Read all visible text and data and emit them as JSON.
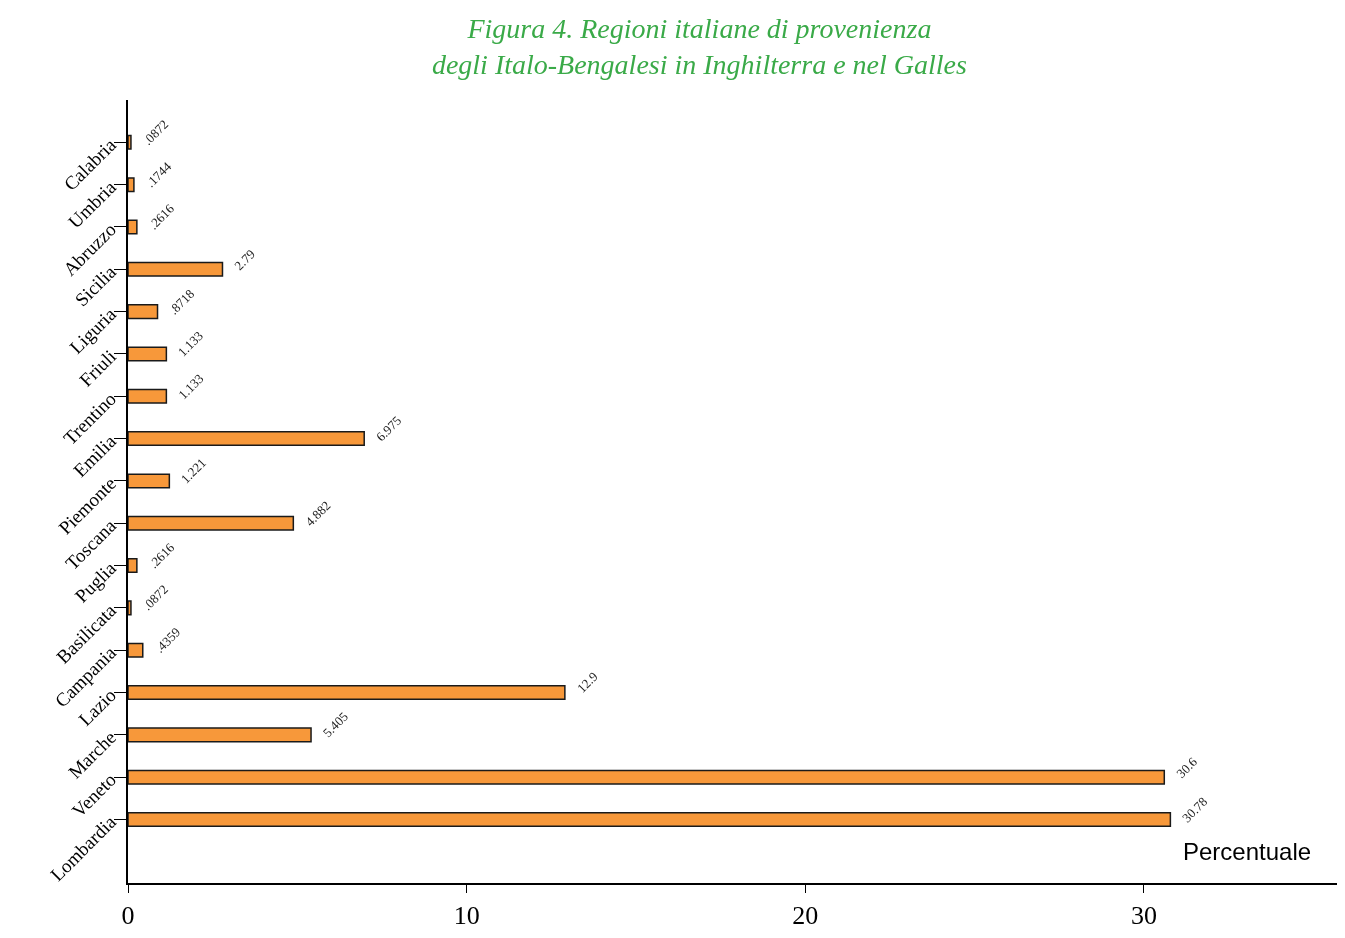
{
  "chart_data": {
    "type": "bar",
    "orientation": "horizontal",
    "title": "Figura 4. Regioni italiane di provenienza\ndegli Italo-Bengalesi in Inghilterra e nel Galles",
    "categories": [
      "Calabria",
      "Umbria",
      "Abruzzo",
      "Sicilia",
      "Liguria",
      "Friuli",
      "Trentino",
      "Emilia",
      "Piemonte",
      "Toscana",
      "Puglia",
      "Basilicata",
      "Campania",
      "Lazio",
      "Marche",
      "Veneto",
      "Lombardia"
    ],
    "values": [
      0.0872,
      0.1744,
      0.2616,
      2.79,
      0.8718,
      1.133,
      1.133,
      6.975,
      1.221,
      4.882,
      0.2616,
      0.0872,
      0.4359,
      12.9,
      5.405,
      30.6,
      30.78
    ],
    "value_labels": [
      ".0872",
      ".1744",
      ".2616",
      "2.79",
      ".8718",
      "1.133",
      "1.133",
      "6.975",
      "1.221",
      "4.882",
      ".2616",
      ".0872",
      ".4359",
      "12.9",
      "5.405",
      "30.6",
      "30.78"
    ],
    "color": "#f7983a",
    "xlabel": "Percentuale",
    "xlim": [
      0,
      35.7
    ],
    "xticks": [
      0,
      10,
      20,
      30
    ],
    "grid": false,
    "legend": false
  }
}
